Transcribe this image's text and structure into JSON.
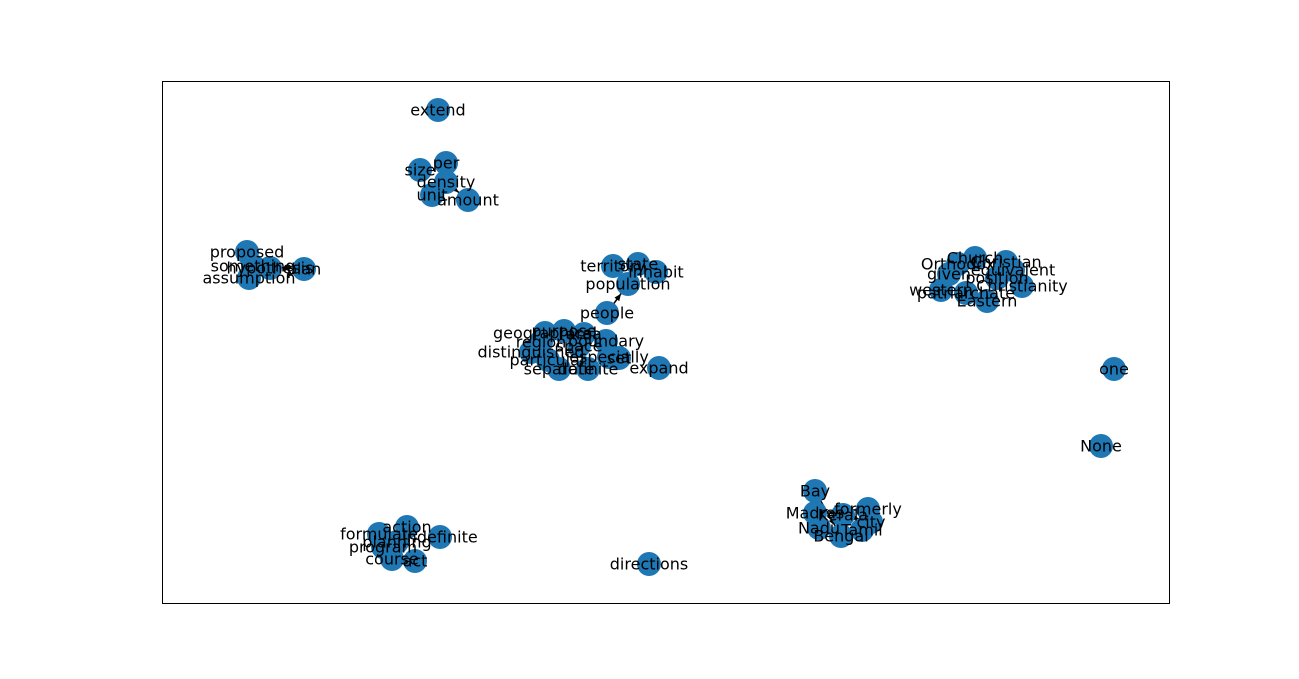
{
  "graph": {
    "node_color": "#1f77b4",
    "edge_color": "#000000",
    "frame_color": "#000000",
    "directed": true,
    "nodes": [
      "extend",
      "per",
      "size",
      "density",
      "unit",
      "amount",
      "proposed",
      "something",
      "hypothesis",
      "plan",
      "assumption",
      "territory",
      "state",
      "inhabit",
      "population",
      "people",
      "geographical",
      "purpose",
      "area",
      "region",
      "boundary",
      "distinguished",
      "space",
      "particular",
      "especially",
      "set",
      "separate",
      "definite",
      "expand",
      "Church",
      "Orthodox",
      "Christian",
      "equivalent",
      "given",
      "Christianity",
      "western",
      "patriarchate",
      "Eastern",
      "position",
      "one",
      "None",
      "Bay",
      "formerly",
      "Madras",
      "Kerala",
      "Nadu",
      "Tamil",
      "city",
      "Bengal",
      "formulate",
      "action",
      "indefinite",
      "program",
      "planning",
      "course",
      "act",
      "directions"
    ],
    "edges": [
      [
        "density",
        "amount"
      ],
      [
        "something",
        "plan"
      ],
      [
        "people",
        "population"
      ],
      [
        "region",
        "area"
      ],
      [
        "Bay",
        "Bengal"
      ],
      [
        "Madras",
        "formerly"
      ],
      [
        "Kerala",
        "city"
      ],
      [
        "formulate",
        "planning"
      ]
    ]
  }
}
